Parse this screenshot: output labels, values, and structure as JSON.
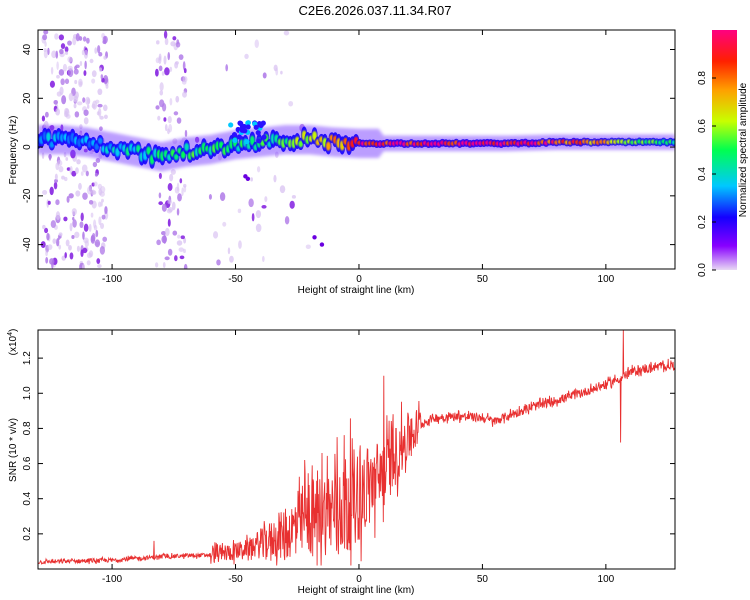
{
  "figure_title": "C2E6.2026.037.11.34.R07",
  "chart_data": [
    {
      "type": "heatmap",
      "title": "C2E6.2026.037.11.34.R07",
      "xlabel": "Height of straight line (km)",
      "ylabel": "Frequency (Hz)",
      "xlim": [
        -130,
        128
      ],
      "ylim": [
        -50,
        48
      ],
      "xticks": [
        -100,
        -50,
        0,
        50,
        100
      ],
      "yticks": [
        -40,
        -20,
        0,
        20,
        40
      ],
      "colorbar": {
        "label": "Normalized spectral amplitude",
        "range": [
          0.0,
          1.0
        ],
        "ticks": [
          0.0,
          0.2,
          0.4,
          0.6,
          0.8
        ],
        "colors": [
          "#e8d8f4",
          "#8800ff",
          "#1400ff",
          "#00c8ff",
          "#00ff50",
          "#c8ff00",
          "#ffa000",
          "#ff2000",
          "#ff0080"
        ]
      },
      "ridge_center_hz": [
        [
          -130,
          3
        ],
        [
          -120,
          3
        ],
        [
          -110,
          2
        ],
        [
          -100,
          0
        ],
        [
          -90,
          -2
        ],
        [
          -80,
          -4
        ],
        [
          -70,
          -2
        ],
        [
          -60,
          -1
        ],
        [
          -50,
          1
        ],
        [
          -40,
          2
        ],
        [
          -30,
          3
        ],
        [
          -20,
          3
        ],
        [
          -10,
          2
        ],
        [
          0,
          1.5
        ],
        [
          20,
          1.5
        ],
        [
          40,
          1.5
        ],
        [
          60,
          1.5
        ],
        [
          80,
          2
        ],
        [
          100,
          2
        ],
        [
          128,
          2
        ]
      ],
      "ridge_amplitude": [
        [
          -130,
          0.35
        ],
        [
          -110,
          0.35
        ],
        [
          -90,
          0.42
        ],
        [
          -70,
          0.5
        ],
        [
          -50,
          0.45
        ],
        [
          -30,
          0.5
        ],
        [
          -20,
          0.6
        ],
        [
          -10,
          0.72
        ],
        [
          0,
          0.9
        ],
        [
          20,
          0.92
        ],
        [
          50,
          0.95
        ],
        [
          70,
          0.95
        ],
        [
          80,
          0.85
        ],
        [
          100,
          0.72
        ],
        [
          110,
          0.6
        ],
        [
          128,
          0.45
        ]
      ]
    },
    {
      "type": "line",
      "xlabel": "Height of straight line (km)",
      "ylabel": "SNR (10 * v/v)",
      "y_scale_label": "(x10",
      "y_scale_exponent": "4",
      "xlim": [
        -130,
        128
      ],
      "ylim": [
        0.0,
        1.36
      ],
      "xticks": [
        -100,
        -50,
        0,
        50,
        100
      ],
      "yticks": [
        0.2,
        0.4,
        0.6,
        0.8,
        1.0,
        1.2
      ],
      "series": [
        {
          "name": "SNR",
          "color": "#e83030",
          "trend": [
            [
              -130,
              0.04
            ],
            [
              -100,
              0.05
            ],
            [
              -80,
              0.07
            ],
            [
              -60,
              0.08
            ],
            [
              -50,
              0.1
            ],
            [
              -40,
              0.14
            ],
            [
              -30,
              0.2
            ],
            [
              -20,
              0.28
            ],
            [
              -10,
              0.35
            ],
            [
              0,
              0.42
            ],
            [
              5,
              0.48
            ],
            [
              10,
              0.55
            ],
            [
              15,
              0.65
            ],
            [
              20,
              0.75
            ],
            [
              25,
              0.82
            ],
            [
              30,
              0.86
            ],
            [
              40,
              0.87
            ],
            [
              50,
              0.86
            ],
            [
              55,
              0.84
            ],
            [
              60,
              0.87
            ],
            [
              70,
              0.92
            ],
            [
              80,
              0.96
            ],
            [
              90,
              1.0
            ],
            [
              100,
              1.05
            ],
            [
              105,
              1.08
            ],
            [
              110,
              1.12
            ],
            [
              120,
              1.15
            ],
            [
              128,
              1.16
            ]
          ],
          "spikes": [
            [
              -83,
              0.16
            ],
            [
              -22,
              0.62
            ],
            [
              -15,
              0.66
            ],
            [
              10,
              1.1
            ],
            [
              15,
              0.8
            ],
            [
              107,
              1.36
            ],
            [
              106,
              0.72
            ]
          ]
        }
      ]
    }
  ]
}
